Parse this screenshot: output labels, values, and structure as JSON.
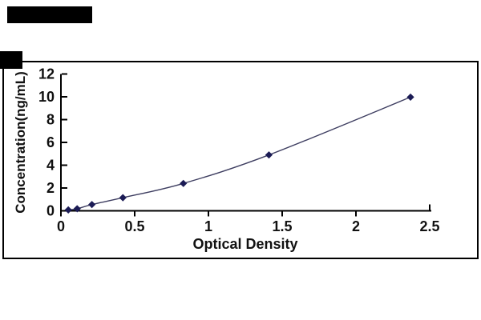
{
  "figure": {
    "kind": "elisa-standard-curve",
    "background": "#ffffff"
  },
  "colors": {
    "frame": "#000000",
    "axis": "#000000",
    "text": "#111111",
    "marker": "#1b1b55",
    "line": "#3d3d60",
    "redaction": "#000000",
    "background": "#ffffff"
  },
  "chart_data": {
    "type": "line",
    "title": "",
    "xlabel": "Optical Density",
    "ylabel": "Concentration(ng/mL)",
    "x": [
      0.05,
      0.11,
      0.21,
      0.42,
      0.83,
      1.41,
      2.37
    ],
    "y": [
      0.08,
      0.18,
      0.55,
      1.15,
      2.4,
      4.9,
      9.97
    ],
    "xlim": [
      0,
      2.5
    ],
    "ylim": [
      0,
      12
    ],
    "x_ticks": [
      "0",
      "0.5",
      "1",
      "1.5",
      "2",
      "2.5"
    ],
    "x_tick_values": [
      0,
      0.5,
      1,
      1.5,
      2,
      2.5
    ],
    "y_ticks": [
      "0",
      "2",
      "4",
      "6",
      "8",
      "10",
      "12"
    ],
    "y_tick_values": [
      0,
      2,
      4,
      6,
      8,
      10,
      12
    ],
    "marker": "diamond",
    "grid": false,
    "legend": null
  }
}
